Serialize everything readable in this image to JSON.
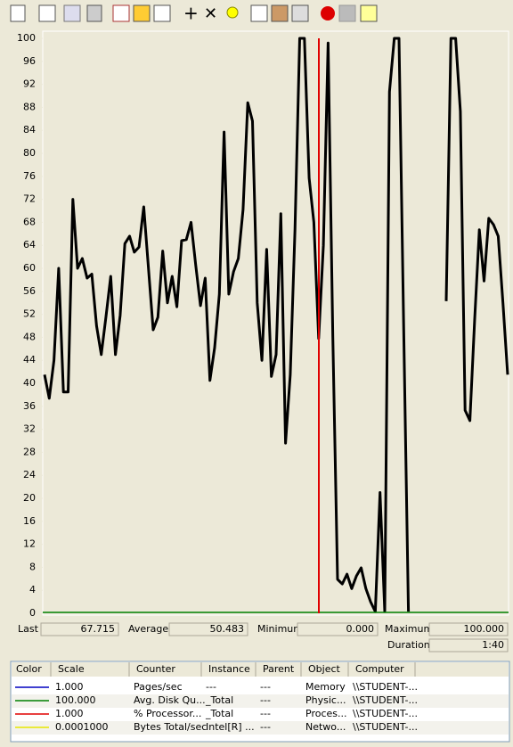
{
  "graph": {
    "type": "line",
    "ylim": [
      0,
      100
    ],
    "yticks": [
      0,
      4,
      8,
      12,
      16,
      20,
      24,
      28,
      32,
      36,
      40,
      44,
      48,
      52,
      56,
      60,
      64,
      68,
      72,
      76,
      80,
      84,
      88,
      92,
      96,
      100
    ],
    "series": [
      {
        "color": "#000000",
        "values": [
          41.5,
          37.4,
          44,
          60,
          38.5,
          38.5,
          72,
          60,
          61.7,
          58.3,
          59,
          50,
          45,
          51.6,
          58.6,
          45,
          51.8,
          64.3,
          65.6,
          62.8,
          63.7,
          70.7,
          60,
          49.3,
          51.5,
          63,
          54,
          58.6,
          53.3,
          64.8,
          65,
          68,
          60.5,
          53.5,
          58.3,
          40.5,
          46.2,
          55.5,
          83.7,
          55.5,
          59.4,
          61.7,
          70.2,
          88.8,
          85.6,
          54,
          44,
          63.3,
          41.2,
          45,
          69.5,
          29.6,
          41.5,
          66.7,
          100,
          100,
          75.7,
          68,
          47.8,
          64,
          99.2,
          48,
          5.9,
          5.1,
          6.8,
          4.3,
          6.5,
          7.9,
          4.3,
          2,
          0.3,
          21,
          0.3,
          90.7,
          100,
          100,
          49.3,
          0.3,
          null,
          null,
          null,
          null,
          null,
          null,
          null,
          54.3,
          100,
          100,
          87.3,
          35.3,
          33.5,
          50.9,
          66.7,
          57.8,
          68.7,
          67.6,
          65.6,
          54,
          41.5
        ]
      }
    ]
  },
  "stats": {
    "last": {
      "label": "Last",
      "value": "67.715"
    },
    "average": {
      "label": "Average",
      "value": "50.483"
    },
    "minimum": {
      "label": "Minimum",
      "value": "0.000"
    },
    "maximum": {
      "label": "Maximum",
      "value": "100.000"
    },
    "duration": {
      "label": "Duration",
      "value": "1:40"
    }
  },
  "legend": {
    "header": [
      "Color",
      "Scale",
      "Counter",
      "Instance",
      "Parent",
      "Object",
      "Computer"
    ],
    "rows": [
      {
        "color": "#0000c0",
        "scale": "1.000",
        "counter": "Pages/sec",
        "instance": "---",
        "parent": "---",
        "object": "Memory",
        "computer": "\\\\STUDENT-..."
      },
      {
        "color": "#008000",
        "scale": "100.000",
        "counter": "Avg. Disk Qu...",
        "instance": "_Total",
        "parent": "---",
        "object": "Physic...",
        "computer": "\\\\STUDENT-..."
      },
      {
        "color": "#e00000",
        "scale": "1.000",
        "counter": "% Processor...",
        "instance": "_Total",
        "parent": "---",
        "object": "Proces...",
        "computer": "\\\\STUDENT-..."
      },
      {
        "color": "#e8e800",
        "scale": "0.0001000",
        "counter": "Bytes Total/sec",
        "instance": "Intel[R] ...",
        "parent": "---",
        "object": "Netwo...",
        "computer": "\\\\STUDENT-..."
      }
    ]
  }
}
